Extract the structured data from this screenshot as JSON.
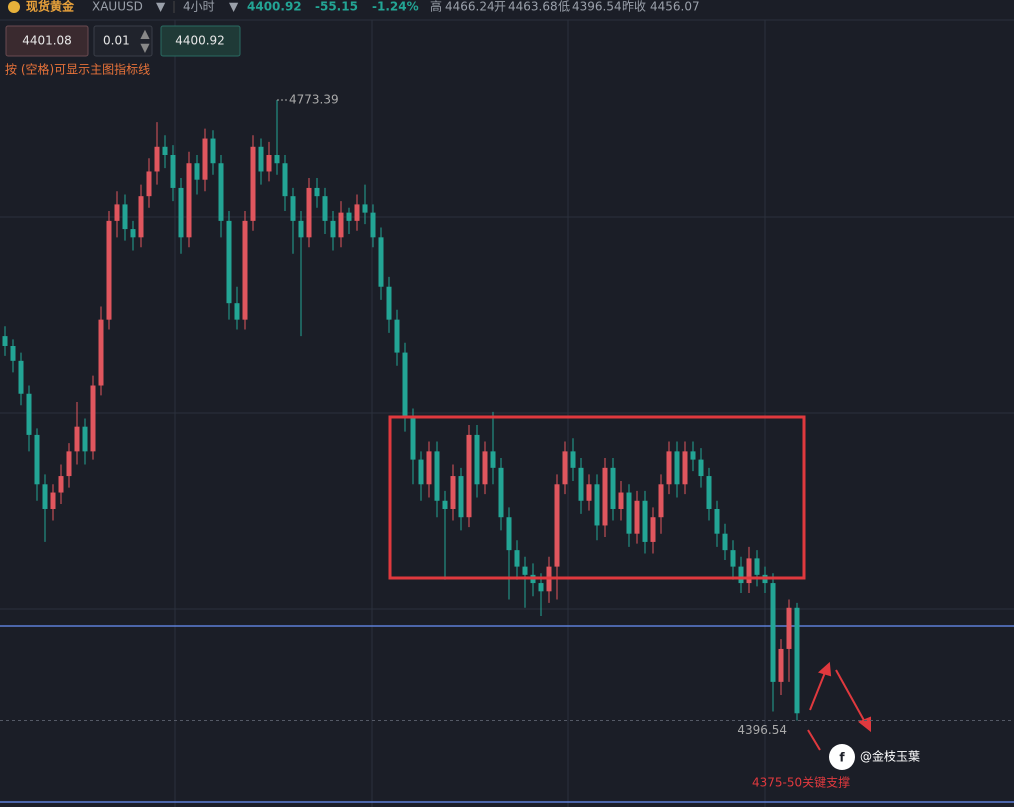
{
  "header": {
    "symbol_name": "现货黄金",
    "symbol_code": "XAUUSD",
    "timeframe": "4小时",
    "price": 4400.92,
    "change": -55.15,
    "change_pct": "-1.24%",
    "high_label": "高",
    "high": 4466.24,
    "open_label": "开",
    "open": 4463.68,
    "low_label": "低",
    "low": 4396.54,
    "prev_close_label": "昨收",
    "prev_close": 4456.07
  },
  "order_bar": {
    "sell_price": 4401.08,
    "lot": 0.01,
    "buy_price": 4400.92,
    "hint": "按 (空格)可显示主图指标线"
  },
  "chart_data": {
    "type": "candlestick",
    "ylim": [
      4344,
      4822
    ],
    "up_color": "#e0565e",
    "down_color": "#23a595",
    "ohlc": [
      [
        4630,
        4636,
        4618,
        4624
      ],
      [
        4624,
        4628,
        4608,
        4615
      ],
      [
        4615,
        4620,
        4588,
        4595
      ],
      [
        4595,
        4600,
        4560,
        4570
      ],
      [
        4570,
        4574,
        4530,
        4540
      ],
      [
        4540,
        4546,
        4505,
        4525
      ],
      [
        4525,
        4540,
        4518,
        4535
      ],
      [
        4535,
        4552,
        4528,
        4545
      ],
      [
        4545,
        4565,
        4538,
        4560
      ],
      [
        4560,
        4590,
        4552,
        4575
      ],
      [
        4575,
        4580,
        4552,
        4560
      ],
      [
        4560,
        4606,
        4555,
        4600
      ],
      [
        4600,
        4648,
        4594,
        4640
      ],
      [
        4640,
        4706,
        4634,
        4700
      ],
      [
        4700,
        4718,
        4690,
        4710
      ],
      [
        4710,
        4716,
        4688,
        4695
      ],
      [
        4695,
        4700,
        4682,
        4690
      ],
      [
        4690,
        4722,
        4684,
        4715
      ],
      [
        4715,
        4738,
        4708,
        4730
      ],
      [
        4730,
        4760,
        4722,
        4745
      ],
      [
        4745,
        4752,
        4732,
        4740
      ],
      [
        4740,
        4746,
        4712,
        4720
      ],
      [
        4720,
        4726,
        4680,
        4690
      ],
      [
        4690,
        4742,
        4684,
        4735
      ],
      [
        4735,
        4740,
        4716,
        4725
      ],
      [
        4725,
        4756,
        4718,
        4750
      ],
      [
        4750,
        4755,
        4728,
        4735
      ],
      [
        4735,
        4740,
        4690,
        4700
      ],
      [
        4700,
        4706,
        4640,
        4650
      ],
      [
        4650,
        4660,
        4634,
        4640
      ],
      [
        4640,
        4706,
        4634,
        4700
      ],
      [
        4700,
        4752,
        4694,
        4745
      ],
      [
        4745,
        4750,
        4722,
        4730
      ],
      [
        4730,
        4748,
        4724,
        4740
      ],
      [
        4740,
        4773.39,
        4728,
        4735
      ],
      [
        4735,
        4740,
        4706,
        4715
      ],
      [
        4715,
        4720,
        4680,
        4700
      ],
      [
        4700,
        4706,
        4630,
        4690
      ],
      [
        4690,
        4726,
        4684,
        4720
      ],
      [
        4720,
        4726,
        4708,
        4715
      ],
      [
        4715,
        4720,
        4692,
        4700
      ],
      [
        4700,
        4706,
        4682,
        4690
      ],
      [
        4690,
        4712,
        4684,
        4705
      ],
      [
        4705,
        4708,
        4692,
        4700
      ],
      [
        4700,
        4716,
        4694,
        4710
      ],
      [
        4710,
        4722,
        4698,
        4705
      ],
      [
        4705,
        4710,
        4684,
        4690
      ],
      [
        4690,
        4696,
        4652,
        4660
      ],
      [
        4660,
        4666,
        4632,
        4640
      ],
      [
        4640,
        4646,
        4612,
        4620
      ],
      [
        4620,
        4626,
        4572,
        4580
      ],
      [
        4580,
        4586,
        4540,
        4555
      ],
      [
        4555,
        4560,
        4530,
        4540
      ],
      [
        4540,
        4566,
        4532,
        4560
      ],
      [
        4560,
        4566,
        4520,
        4530
      ],
      [
        4530,
        4536,
        4482,
        4525
      ],
      [
        4525,
        4552,
        4518,
        4545
      ],
      [
        4545,
        4550,
        4512,
        4520
      ],
      [
        4520,
        4576,
        4514,
        4570
      ],
      [
        4570,
        4576,
        4532,
        4540
      ],
      [
        4540,
        4566,
        4534,
        4560
      ],
      [
        4560,
        4584,
        4540,
        4550
      ],
      [
        4550,
        4556,
        4512,
        4520
      ],
      [
        4520,
        4526,
        4470,
        4500
      ],
      [
        4500,
        4506,
        4482,
        4490
      ],
      [
        4490,
        4496,
        4465,
        4485
      ],
      [
        4485,
        4492,
        4472,
        4480
      ],
      [
        4480,
        4486,
        4460,
        4475
      ],
      [
        4475,
        4496,
        4468,
        4490
      ],
      [
        4490,
        4546,
        4470,
        4540
      ],
      [
        4540,
        4566,
        4534,
        4560
      ],
      [
        4560,
        4568,
        4542,
        4550
      ],
      [
        4550,
        4556,
        4522,
        4530
      ],
      [
        4530,
        4546,
        4524,
        4540
      ],
      [
        4540,
        4546,
        4506,
        4515
      ],
      [
        4515,
        4556,
        4508,
        4550
      ],
      [
        4550,
        4556,
        4518,
        4525
      ],
      [
        4525,
        4542,
        4518,
        4535
      ],
      [
        4535,
        4540,
        4502,
        4510
      ],
      [
        4510,
        4536,
        4504,
        4530
      ],
      [
        4530,
        4536,
        4498,
        4505
      ],
      [
        4505,
        4526,
        4498,
        4520
      ],
      [
        4520,
        4546,
        4510,
        4540
      ],
      [
        4540,
        4566,
        4534,
        4560
      ],
      [
        4560,
        4566,
        4532,
        4540
      ],
      [
        4540,
        4566,
        4534,
        4560
      ],
      [
        4560,
        4566,
        4548,
        4555
      ],
      [
        4555,
        4562,
        4538,
        4545
      ],
      [
        4545,
        4550,
        4518,
        4525
      ],
      [
        4525,
        4530,
        4502,
        4510
      ],
      [
        4510,
        4516,
        4494,
        4500
      ],
      [
        4500,
        4506,
        4482,
        4490
      ],
      [
        4490,
        4496,
        4474,
        4480
      ],
      [
        4480,
        4502,
        4474,
        4495
      ],
      [
        4495,
        4500,
        4478,
        4485
      ],
      [
        4485,
        4490,
        4474,
        4480
      ],
      [
        4480,
        4486,
        4402,
        4420
      ],
      [
        4420,
        4446,
        4412,
        4440
      ],
      [
        4440,
        4470,
        4420,
        4465
      ],
      [
        4465,
        4468,
        4396.54,
        4400.92
      ]
    ],
    "annotation": "4375-50关键支撑",
    "watermark": "@金枝玉葉"
  }
}
